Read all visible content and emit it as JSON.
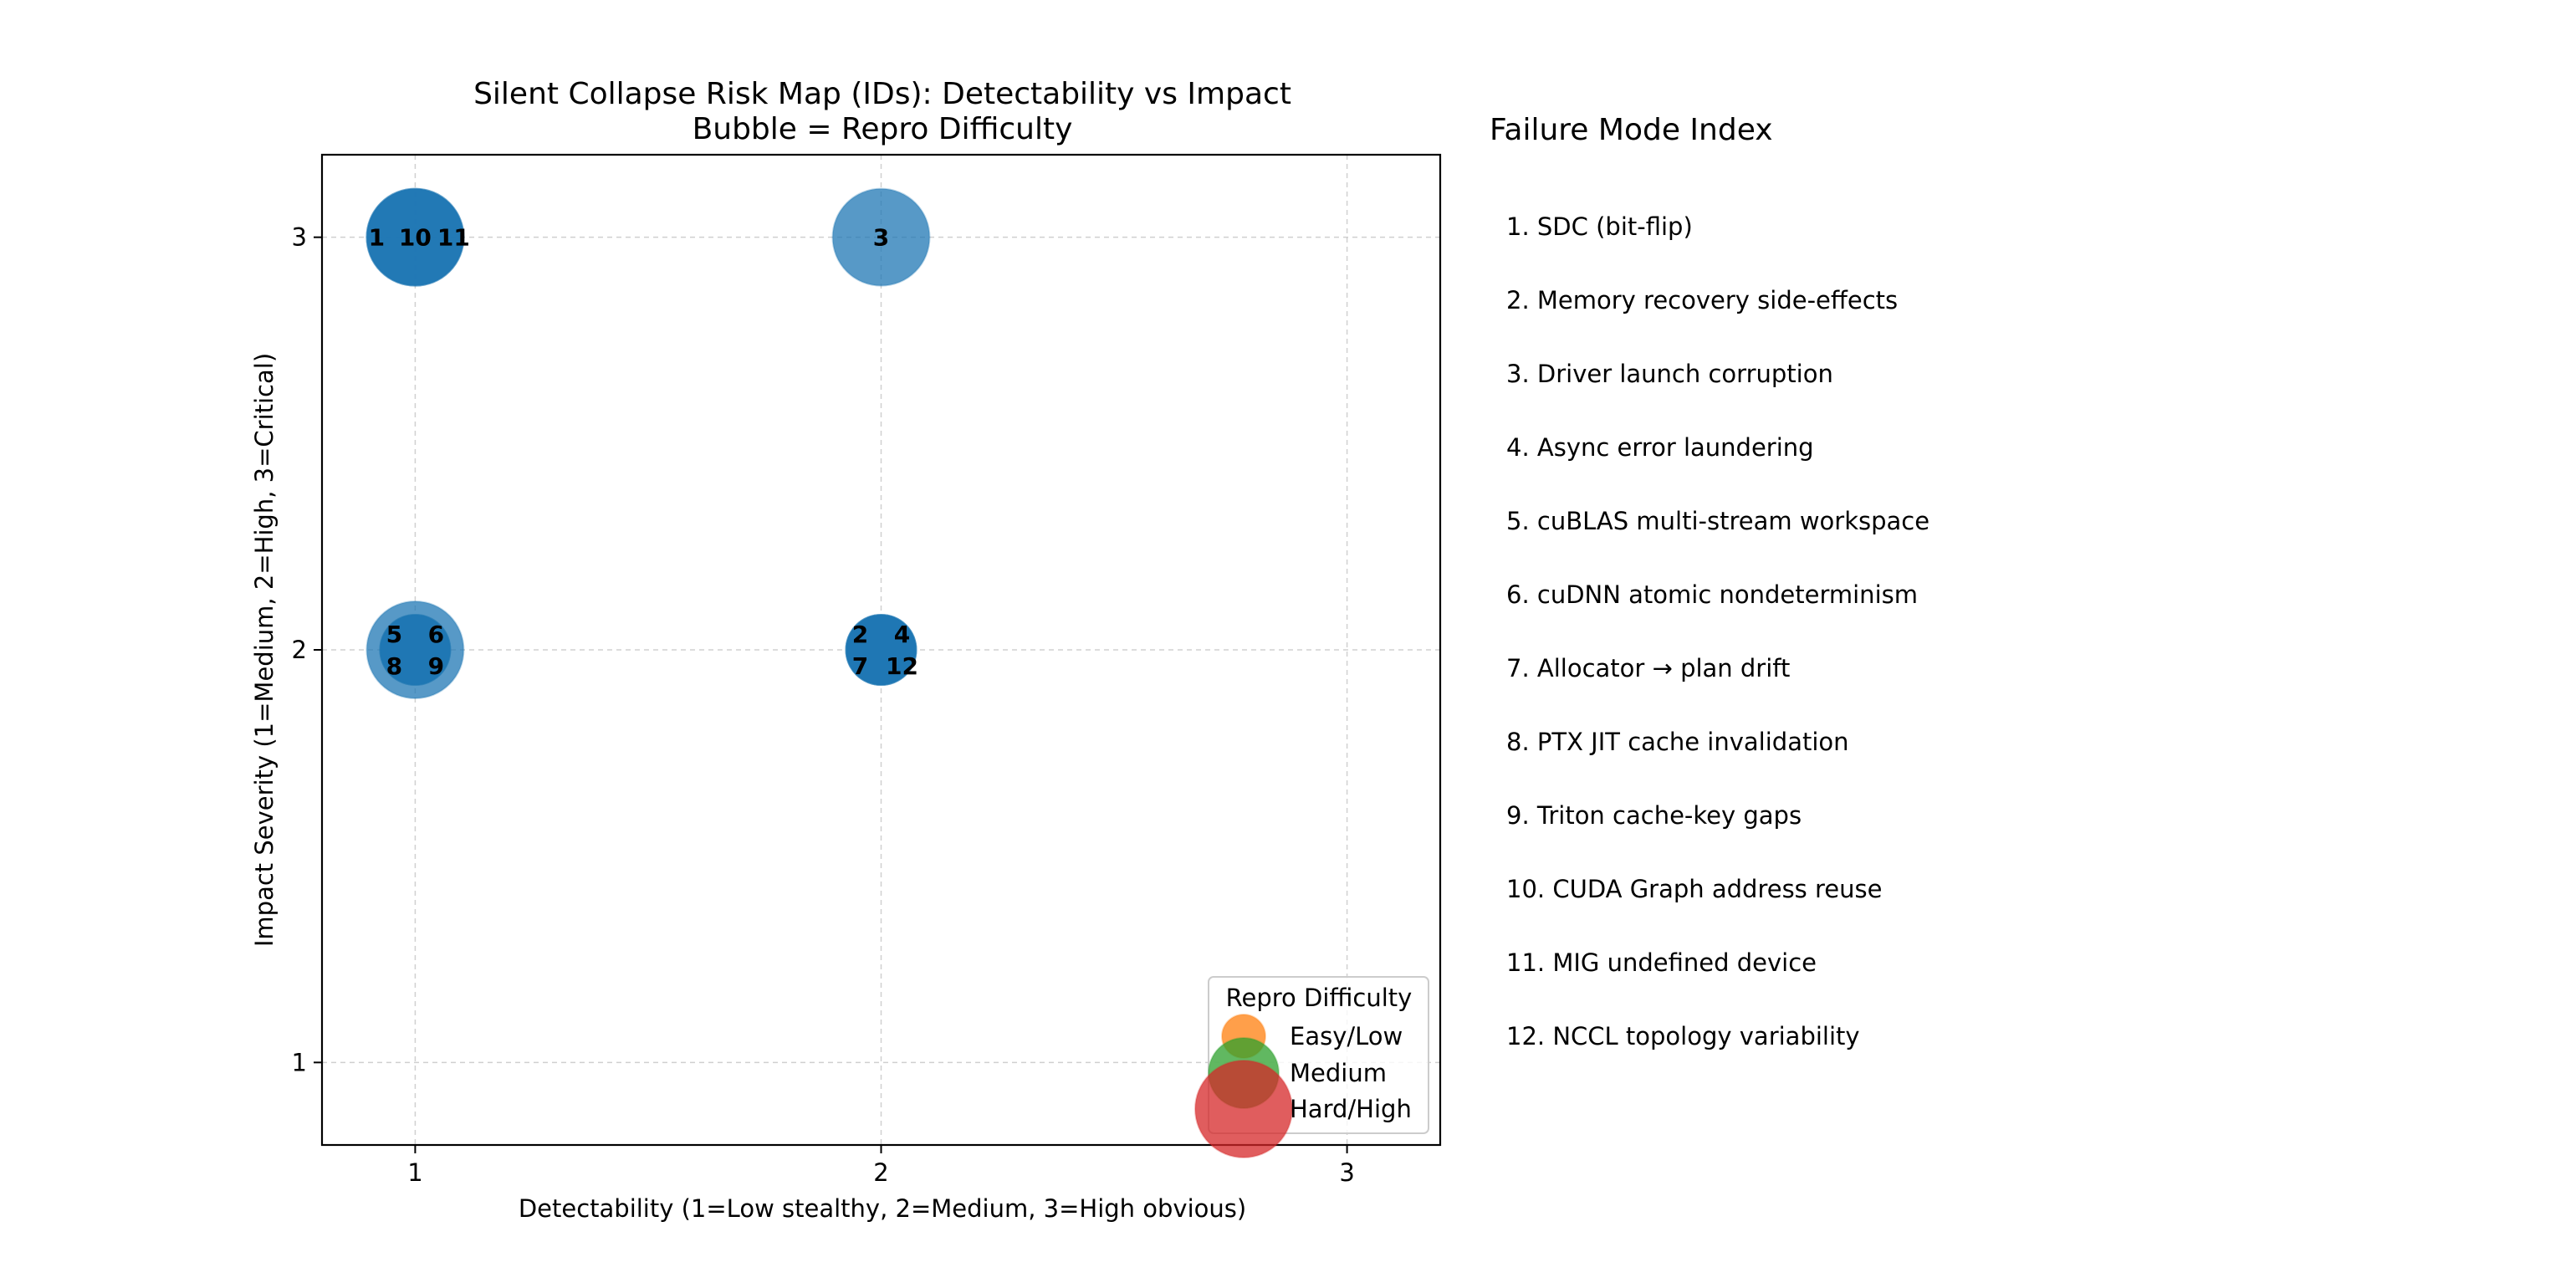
{
  "chart_data": {
    "type": "scatter",
    "title": "Silent Collapse Risk Map (IDs): Detectability vs Impact",
    "subtitle": "Bubble = Repro Difficulty",
    "xlabel": "Detectability (1=Low stealthy, 2=Medium, 3=High obvious)",
    "ylabel": "Impact Severity (1=Medium, 2=High, 3=Critical)",
    "xlim": [
      0.8,
      3.2
    ],
    "ylim": [
      0.8,
      3.2
    ],
    "xticks": [
      "1",
      "2",
      "3"
    ],
    "yticks": [
      "1",
      "2",
      "3"
    ],
    "grid": true,
    "bubble_color": "#1f77b4",
    "points": [
      {
        "id": "1",
        "x": 1,
        "y": 3,
        "difficulty": "Hard/High"
      },
      {
        "id": "2",
        "x": 2,
        "y": 2,
        "difficulty": "Medium"
      },
      {
        "id": "3",
        "x": 2,
        "y": 3,
        "difficulty": "Hard/High"
      },
      {
        "id": "4",
        "x": 2,
        "y": 2,
        "difficulty": "Medium"
      },
      {
        "id": "5",
        "x": 1,
        "y": 2,
        "difficulty": "Hard/High"
      },
      {
        "id": "6",
        "x": 1,
        "y": 2,
        "difficulty": "Medium"
      },
      {
        "id": "7",
        "x": 2,
        "y": 2,
        "difficulty": "Medium"
      },
      {
        "id": "8",
        "x": 1,
        "y": 2,
        "difficulty": "Medium"
      },
      {
        "id": "9",
        "x": 1,
        "y": 2,
        "difficulty": "Medium"
      },
      {
        "id": "10",
        "x": 1,
        "y": 3,
        "difficulty": "Hard/High"
      },
      {
        "id": "11",
        "x": 1,
        "y": 3,
        "difficulty": "Hard/High"
      },
      {
        "id": "12",
        "x": 2,
        "y": 2,
        "difficulty": "Medium"
      }
    ],
    "legend": {
      "title": "Repro Difficulty",
      "placement": "lower-right",
      "entries": [
        {
          "label": "Easy/Low",
          "level": 1,
          "color": "#ff7f0e"
        },
        {
          "label": "Medium",
          "level": 2,
          "color": "#2ca02c"
        },
        {
          "label": "Hard/High",
          "level": 3,
          "color": "#d62728"
        }
      ]
    }
  },
  "index_panel": {
    "title": "Failure Mode Index",
    "items": [
      "1. SDC (bit-flip)",
      "2. Memory recovery side-effects",
      "3. Driver launch corruption",
      "4. Async error laundering",
      "5. cuBLAS multi-stream workspace",
      "6. cuDNN atomic nondeterminism",
      "7. Allocator → plan drift",
      "8. PTX JIT cache invalidation",
      "9. Triton cache-key gaps",
      "10. CUDA Graph address reuse",
      "11. MIG undefined device",
      "12. NCCL topology variability"
    ]
  }
}
